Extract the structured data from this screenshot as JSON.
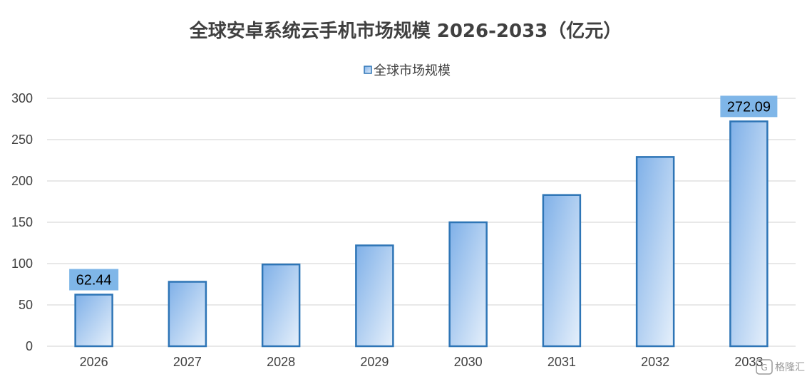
{
  "colors": {
    "bar_gradient_start": "#7fb0e8",
    "bar_gradient_end": "#e6f0fb",
    "bar_stroke": "#2e75b6",
    "data_label_bg": "#7fb6e8",
    "gridline": "#d9d9d9",
    "axis_text": "#404040"
  },
  "watermark": {
    "text": "格隆汇"
  },
  "chart_data": {
    "type": "bar",
    "title": "全球安卓系统云手机市场规模 2026-2033（亿元）",
    "xlabel": "",
    "ylabel": "",
    "categories": [
      "2026",
      "2027",
      "2028",
      "2029",
      "2030",
      "2031",
      "2032",
      "2033"
    ],
    "series": [
      {
        "name": "全球市场规模",
        "values": [
          62.44,
          78,
          99,
          122,
          150,
          183,
          229,
          272.09
        ]
      }
    ],
    "data_labels": [
      {
        "index": 0,
        "text": "62.44"
      },
      {
        "index": 7,
        "text": "272.09"
      }
    ],
    "ylim": [
      0,
      300
    ],
    "yticks": [
      0,
      50,
      100,
      150,
      200,
      250,
      300
    ],
    "grid": true,
    "legend_position": "top"
  }
}
